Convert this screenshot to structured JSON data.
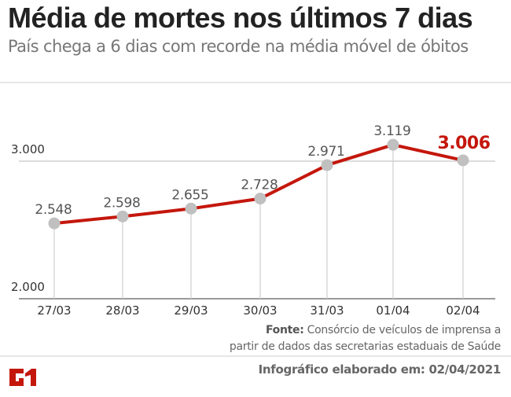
{
  "header": {
    "title": "Média de mortes nos últimos 7 dias",
    "subtitle": "País chega a 6 dias com recorde na média móvel de óbitos"
  },
  "chart_data": {
    "type": "line",
    "title": "Média de mortes nos últimos 7 dias",
    "categories": [
      "27/03",
      "28/03",
      "29/03",
      "30/03",
      "31/03",
      "01/04",
      "02/04"
    ],
    "values": [
      2548,
      2598,
      2655,
      2728,
      2971,
      3119,
      3006
    ],
    "value_labels": [
      "2.548",
      "2.598",
      "2.655",
      "2.728",
      "2.971",
      "3.119",
      "3.006"
    ],
    "highlight_index": 6,
    "yticks": [
      2000,
      3000
    ],
    "ytick_labels": [
      "2.000",
      "3.000"
    ],
    "ylim": [
      2000,
      3000
    ],
    "xlabel": "",
    "ylabel": "",
    "grid": true,
    "colors": {
      "line": "#c4170c",
      "marker": "#c0c0c0",
      "highlight_label": "#c4170c",
      "label": "#555555",
      "grid": "#d0d0d0",
      "axis": "#999999"
    }
  },
  "footer": {
    "source_label": "Fonte:",
    "source_text_1": " Consórcio de veículos de imprensa a",
    "source_text_2": "partir de dados das secretarias estaduais de Saúde",
    "date_text": "Infográfico elaborado em: 02/04/2021",
    "logo_text": "G1"
  }
}
